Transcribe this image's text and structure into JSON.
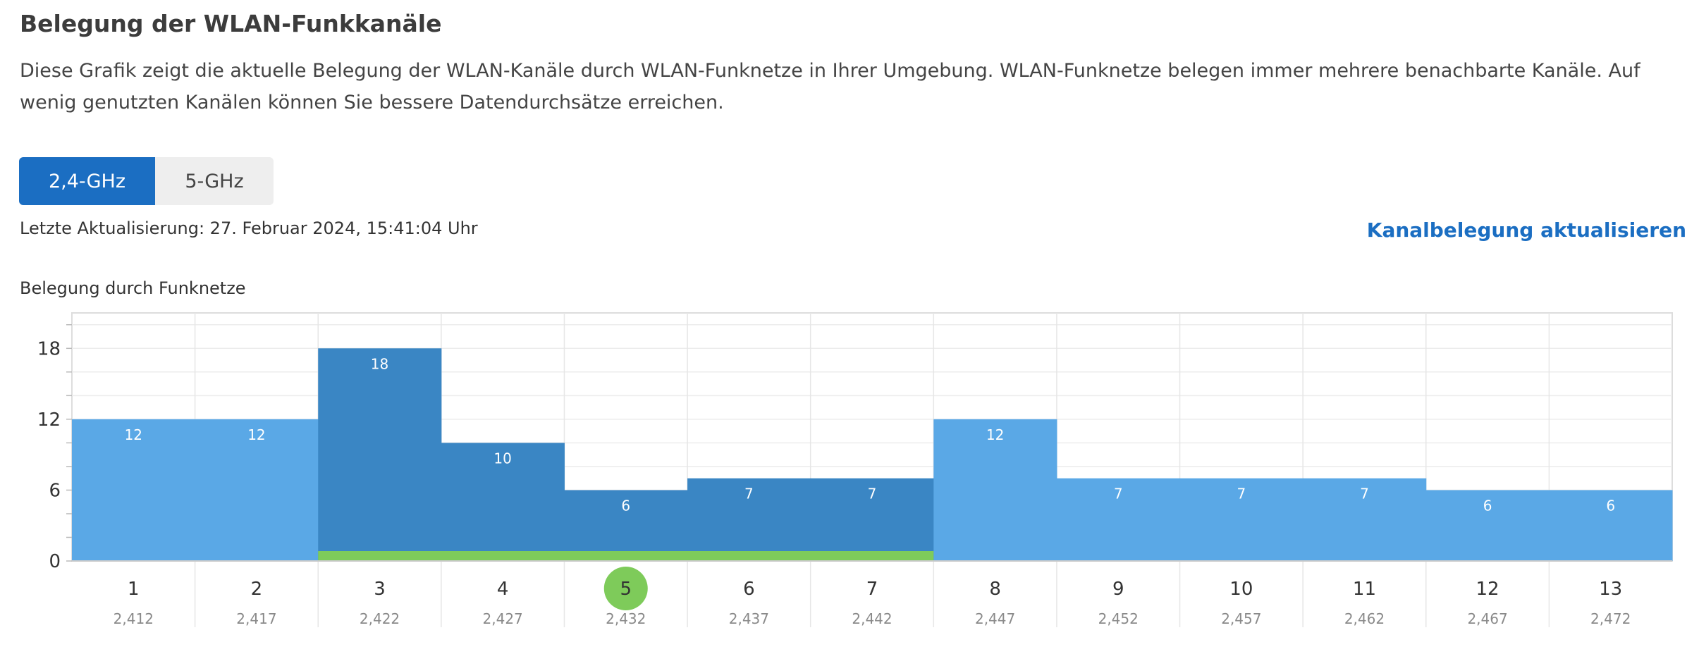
{
  "header": {
    "title": "Belegung der WLAN-Funkkanäle",
    "description": "Diese Grafik zeigt die aktuelle Belegung der WLAN-Kanäle durch WLAN-Funknetze in Ihrer Umgebung. WLAN-Funknetze belegen immer mehrere benachbarte Kanäle. Auf wenig genutzten Kanälen können Sie bessere Datendurchsätze erreichen."
  },
  "tabs": [
    {
      "label": "2,4-GHz",
      "active": true
    },
    {
      "label": "5-GHz",
      "active": false
    }
  ],
  "status": {
    "last_update": "Letzte Aktualisierung: 27. Februar 2024, 15:41:04 Uhr",
    "refresh_label": "Kanalbelegung aktualisieren"
  },
  "colors": {
    "accent": "#1b6ec2",
    "bar_light": "#5aa8e6",
    "bar_dark": "#3a86c4",
    "own_network": "#7ecb5a"
  },
  "chart_data": {
    "type": "bar",
    "title": "Belegung durch Funknetze",
    "categories": [
      "1",
      "2",
      "3",
      "4",
      "5",
      "6",
      "7",
      "8",
      "9",
      "10",
      "11",
      "12",
      "13"
    ],
    "frequencies": [
      "2,412",
      "2,417",
      "2,422",
      "2,427",
      "2,432",
      "2,437",
      "2,442",
      "2,447",
      "2,452",
      "2,457",
      "2,462",
      "2,467",
      "2,472"
    ],
    "values": [
      12,
      12,
      18,
      10,
      6,
      7,
      7,
      12,
      7,
      7,
      7,
      6,
      6
    ],
    "highlighted_channels": [
      "3",
      "4",
      "5",
      "6",
      "7"
    ],
    "current_channel": "5",
    "own_network_span": [
      "3",
      "7"
    ],
    "y_ticks": [
      0,
      6,
      12,
      18
    ],
    "ylim": [
      0,
      21
    ],
    "grid": true
  }
}
